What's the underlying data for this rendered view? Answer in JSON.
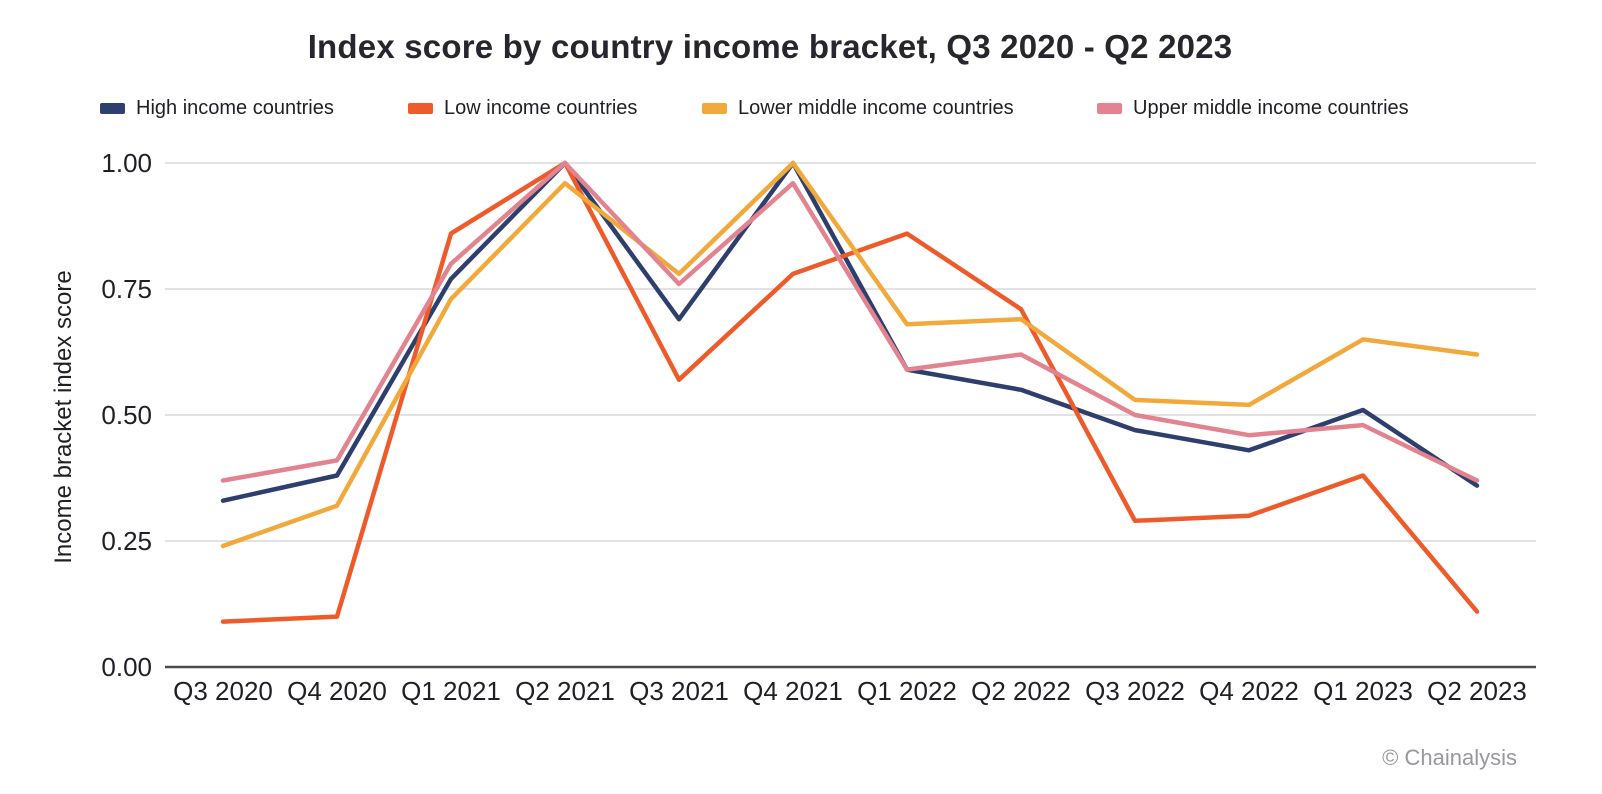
{
  "title": "Index score by country income bracket, Q3 2020 - Q2 2023",
  "footer": {
    "credit": "© Chainalysis"
  },
  "colors": {
    "high_income": "#2e3f6e",
    "low_income": "#ee5b2b",
    "lower_middle_income": "#f2a93b",
    "upper_middle_income": "#e2838f",
    "gridline": "#d9d9d9",
    "axis_line": "#4d4d4d",
    "text": "#1f1f26",
    "credit_text": "#97979d"
  },
  "chart_data": {
    "type": "line",
    "title": "Index score by country income bracket, Q3 2020 - Q2 2023",
    "xlabel": "",
    "ylabel": "Income bracket index score",
    "ylim": [
      0,
      1
    ],
    "yticks": [
      0,
      0.25,
      0.5,
      0.75,
      1
    ],
    "ytick_labels": [
      "0.00",
      "0.25",
      "0.50",
      "0.75",
      "1.00"
    ],
    "grid": true,
    "legend_position": "top",
    "categories": [
      "Q3 2020",
      "Q4 2020",
      "Q1 2021",
      "Q2 2021",
      "Q3 2021",
      "Q4 2021",
      "Q1 2022",
      "Q2 2022",
      "Q3 2022",
      "Q4 2022",
      "Q1 2023",
      "Q2 2023"
    ],
    "series": [
      {
        "name": "High income countries",
        "color": "#2e3f6e",
        "values": [
          0.33,
          0.38,
          0.77,
          1.0,
          0.69,
          1.0,
          0.59,
          0.55,
          0.47,
          0.43,
          0.51,
          0.36
        ]
      },
      {
        "name": "Low income countries",
        "color": "#ee5b2b",
        "values": [
          0.09,
          0.1,
          0.86,
          1.0,
          0.57,
          0.78,
          0.86,
          0.71,
          0.29,
          0.3,
          0.38,
          0.11
        ]
      },
      {
        "name": "Lower middle income countries",
        "color": "#f2a93b",
        "values": [
          0.24,
          0.32,
          0.73,
          0.96,
          0.78,
          1.0,
          0.68,
          0.69,
          0.53,
          0.52,
          0.65,
          0.62
        ]
      },
      {
        "name": "Upper middle income countries",
        "color": "#e2838f",
        "values": [
          0.37,
          0.41,
          0.8,
          1.0,
          0.76,
          0.96,
          0.59,
          0.62,
          0.5,
          0.46,
          0.48,
          0.37
        ]
      }
    ]
  }
}
